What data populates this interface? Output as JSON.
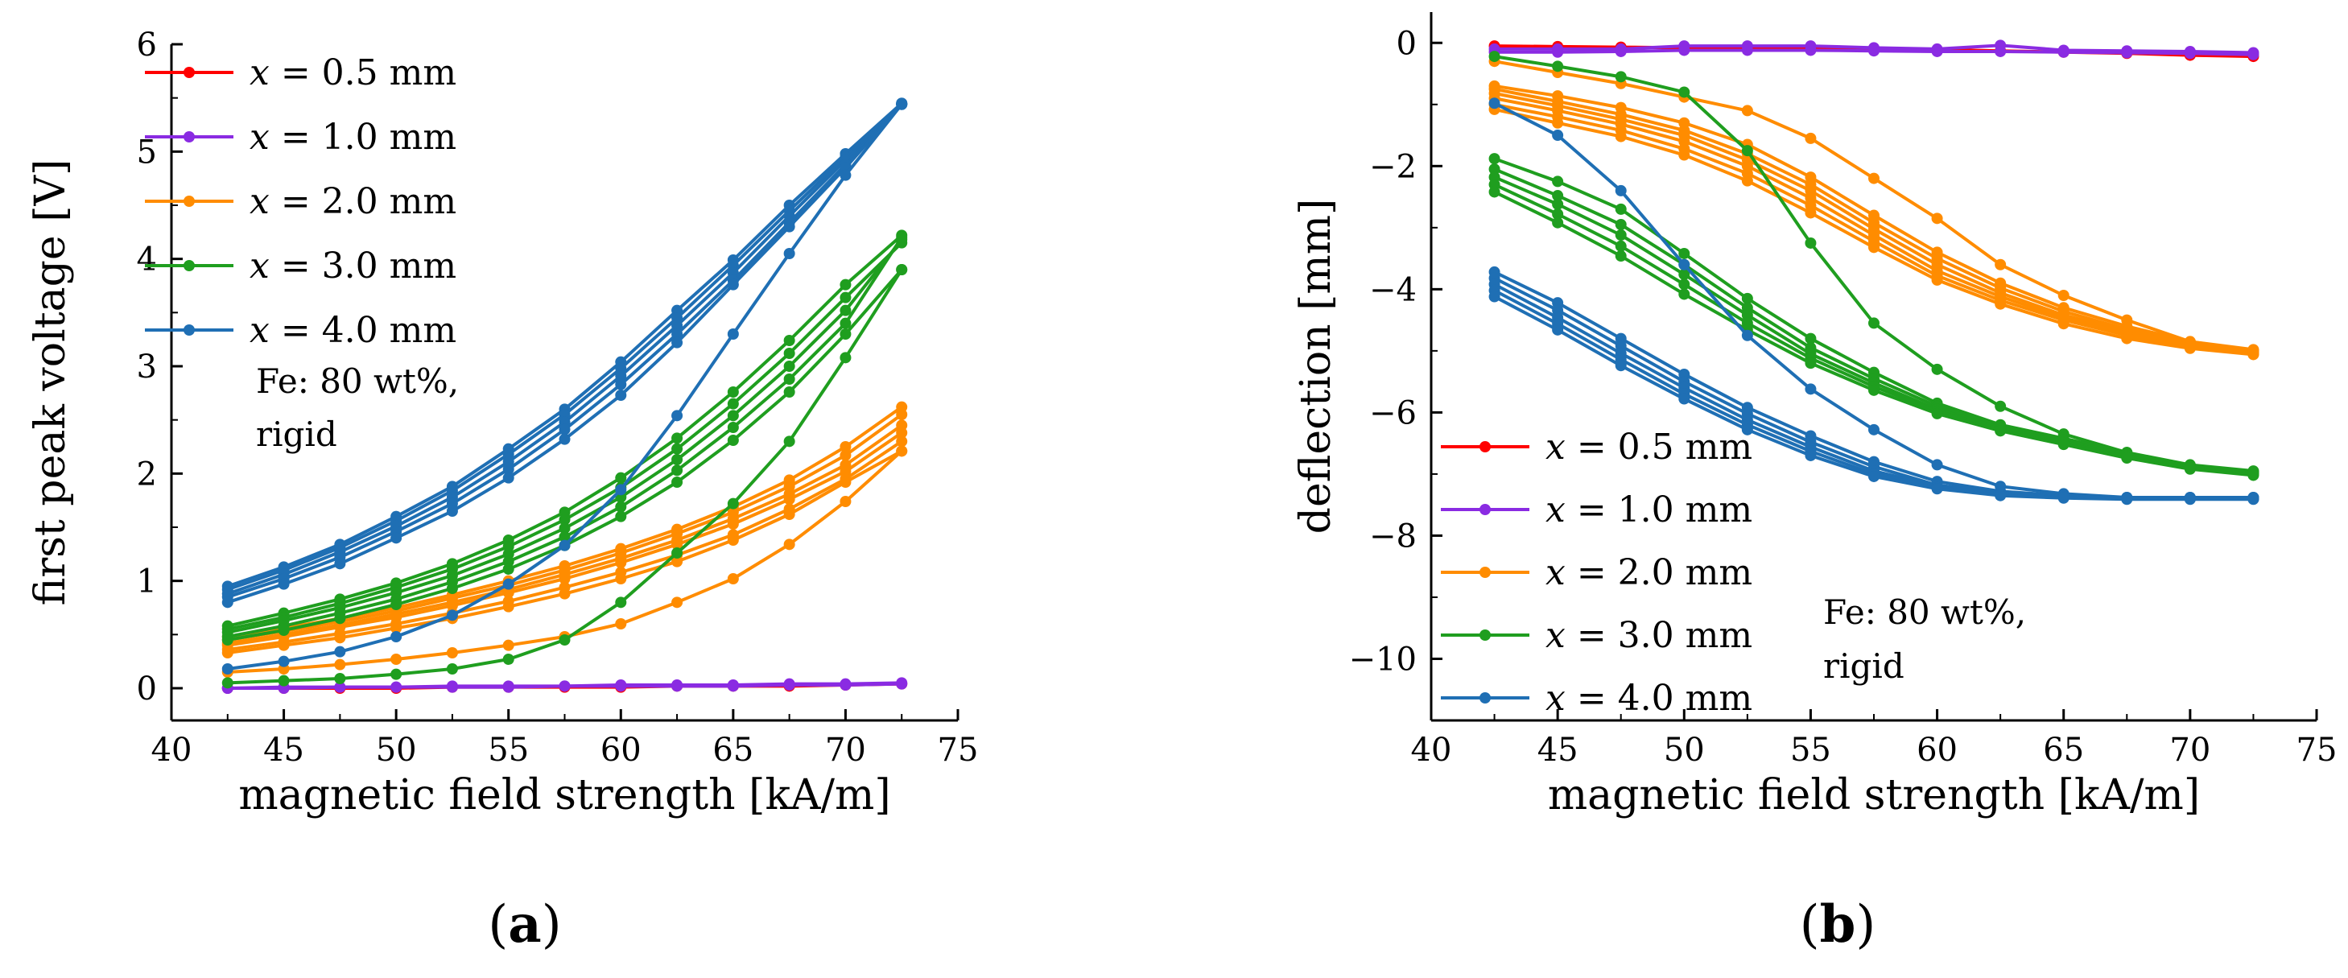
{
  "chart_data": [
    {
      "panel_label": "(a)",
      "type": "line",
      "xlabel": "magnetic field strength [kA/m]",
      "ylabel": "first peak voltage [V]",
      "xlim": [
        40,
        75
      ],
      "ylim": [
        -0.3,
        6
      ],
      "xticks": [
        40,
        45,
        50,
        55,
        60,
        65,
        70,
        75
      ],
      "yticks": [
        0,
        1,
        2,
        3,
        4,
        5,
        6
      ],
      "legend_position": "top-left",
      "annotation": [
        "Fe: 80 wt%,",
        "rigid"
      ],
      "x": [
        42.5,
        45,
        47.5,
        50,
        52.5,
        55,
        57.5,
        60,
        62.5,
        65,
        67.5,
        70,
        72.5
      ],
      "series": [
        {
          "name": "x = 0.5 mm",
          "color": "#ff0000",
          "runs": [
            [
              0.0,
              0.0,
              0.0,
              0.0,
              0.01,
              0.01,
              0.01,
              0.01,
              0.02,
              0.02,
              0.02,
              0.03,
              0.04
            ]
          ]
        },
        {
          "name": "x = 1.0 mm",
          "color": "#8a2be2",
          "runs": [
            [
              0.0,
              0.01,
              0.01,
              0.01,
              0.02,
              0.02,
              0.02,
              0.03,
              0.03,
              0.03,
              0.04,
              0.04,
              0.05
            ],
            [
              0.0,
              0.0,
              0.01,
              0.01,
              0.01,
              0.01,
              0.02,
              0.02,
              0.02,
              0.02,
              0.03,
              0.03,
              0.04
            ]
          ]
        },
        {
          "name": "x = 2.0 mm",
          "color": "#ff8c00",
          "runs": [
            [
              0.45,
              0.53,
              0.62,
              0.72,
              0.84,
              0.96,
              1.1,
              1.26,
              1.44,
              1.64,
              1.88,
              2.17,
              2.55
            ],
            [
              0.42,
              0.5,
              0.59,
              0.69,
              0.8,
              0.92,
              1.06,
              1.21,
              1.38,
              1.58,
              1.81,
              2.08,
              2.45
            ],
            [
              0.4,
              0.48,
              0.57,
              0.66,
              0.77,
              0.89,
              1.02,
              1.17,
              1.34,
              1.53,
              1.76,
              2.02,
              2.38
            ],
            [
              0.48,
              0.56,
              0.65,
              0.75,
              0.87,
              1.0,
              1.14,
              1.3,
              1.48,
              1.69,
              1.94,
              2.25,
              2.62
            ],
            [
              0.36,
              0.43,
              0.51,
              0.6,
              0.7,
              0.81,
              0.94,
              1.08,
              1.24,
              1.43,
              1.67,
              1.95,
              2.3
            ],
            [
              0.33,
              0.4,
              0.47,
              0.56,
              0.65,
              0.76,
              0.88,
              1.02,
              1.18,
              1.38,
              1.62,
              1.92,
              2.21
            ],
            [
              0.15,
              0.18,
              0.22,
              0.27,
              0.33,
              0.4,
              0.48,
              0.6,
              0.8,
              1.02,
              1.34,
              1.74,
              2.21
            ]
          ]
        },
        {
          "name": "x = 3.0 mm",
          "color": "#1f9e1f",
          "runs": [
            [
              0.58,
              0.7,
              0.83,
              0.98,
              1.16,
              1.38,
              1.64,
              1.96,
              2.33,
              2.76,
              3.24,
              3.76,
              4.22
            ],
            [
              0.55,
              0.66,
              0.79,
              0.94,
              1.11,
              1.32,
              1.57,
              1.87,
              2.23,
              2.65,
              3.12,
              3.64,
              4.15
            ],
            [
              0.52,
              0.63,
              0.75,
              0.89,
              1.05,
              1.25,
              1.49,
              1.78,
              2.13,
              2.54,
              3.0,
              3.52,
              4.18
            ],
            [
              0.48,
              0.58,
              0.7,
              0.83,
              0.99,
              1.18,
              1.41,
              1.69,
              2.03,
              2.43,
              2.88,
              3.4,
              4.2
            ],
            [
              0.45,
              0.54,
              0.65,
              0.78,
              0.93,
              1.11,
              1.33,
              1.6,
              1.92,
              2.31,
              2.76,
              3.3,
              3.9
            ],
            [
              0.05,
              0.07,
              0.09,
              0.13,
              0.18,
              0.27,
              0.45,
              0.8,
              1.26,
              1.72,
              2.3,
              3.08,
              3.9
            ]
          ]
        },
        {
          "name": "x = 4.0 mm",
          "color": "#1f6fb4",
          "runs": [
            [
              0.95,
              1.13,
              1.34,
              1.6,
              1.88,
              2.23,
              2.6,
              3.04,
              3.52,
              3.99,
              4.5,
              4.98,
              5.45
            ],
            [
              0.92,
              1.1,
              1.31,
              1.56,
              1.84,
              2.18,
              2.55,
              2.98,
              3.45,
              3.94,
              4.45,
              4.95,
              5.45
            ],
            [
              0.88,
              1.06,
              1.27,
              1.51,
              1.78,
              2.11,
              2.48,
              2.91,
              3.38,
              3.87,
              4.4,
              4.92,
              5.44
            ],
            [
              0.85,
              1.02,
              1.22,
              1.46,
              1.72,
              2.04,
              2.41,
              2.83,
              3.3,
              3.8,
              4.34,
              4.88,
              5.44
            ],
            [
              0.8,
              0.97,
              1.16,
              1.4,
              1.65,
              1.96,
              2.32,
              2.73,
              3.22,
              3.76,
              4.3,
              4.85,
              5.44
            ],
            [
              0.18,
              0.25,
              0.34,
              0.48,
              0.68,
              0.97,
              1.33,
              1.85,
              2.54,
              3.3,
              4.05,
              4.78,
              5.44
            ]
          ]
        }
      ]
    },
    {
      "panel_label": "(b)",
      "type": "line",
      "xlabel": "magnetic field strength [kA/m]",
      "ylabel": "deflection [mm]",
      "xlim": [
        40,
        75
      ],
      "ylim": [
        -11,
        0.5
      ],
      "xticks": [
        40,
        45,
        50,
        55,
        60,
        65,
        70,
        75
      ],
      "yticks": [
        0,
        -2,
        -4,
        -6,
        -8,
        -10
      ],
      "legend_position": "bottom-left",
      "annotation": [
        "Fe: 80 wt%,",
        "rigid"
      ],
      "x": [
        42.5,
        45,
        47.5,
        50,
        52.5,
        55,
        57.5,
        60,
        62.5,
        65,
        67.5,
        70,
        72.5
      ],
      "series": [
        {
          "name": "x = 0.5 mm",
          "color": "#ff0000",
          "runs": [
            [
              -0.05,
              -0.06,
              -0.07,
              -0.08,
              -0.08,
              -0.09,
              -0.1,
              -0.11,
              -0.13,
              -0.15,
              -0.17,
              -0.2,
              -0.22
            ]
          ]
        },
        {
          "name": "x = 1.0 mm",
          "color": "#8a2be2",
          "runs": [
            [
              -0.1,
              -0.1,
              -0.1,
              -0.05,
              -0.05,
              -0.05,
              -0.08,
              -0.1,
              -0.04,
              -0.12,
              -0.13,
              -0.14,
              -0.16
            ],
            [
              -0.15,
              -0.15,
              -0.14,
              -0.12,
              -0.12,
              -0.12,
              -0.13,
              -0.14,
              -0.14,
              -0.15,
              -0.16,
              -0.17,
              -0.19
            ]
          ]
        },
        {
          "name": "x = 2.0 mm",
          "color": "#ff8c00",
          "runs": [
            [
              -0.3,
              -0.48,
              -0.66,
              -0.88,
              -1.1,
              -1.55,
              -2.2,
              -2.85,
              -3.6,
              -4.1,
              -4.5,
              -4.85,
              -5.0
            ],
            [
              -0.7,
              -0.86,
              -1.05,
              -1.3,
              -1.65,
              -2.18,
              -2.8,
              -3.4,
              -3.9,
              -4.3,
              -4.6,
              -4.85,
              -4.98
            ],
            [
              -0.75,
              -0.95,
              -1.16,
              -1.42,
              -1.8,
              -2.3,
              -2.92,
              -3.5,
              -3.98,
              -4.36,
              -4.65,
              -4.88,
              -5.0
            ],
            [
              -0.82,
              -1.02,
              -1.24,
              -1.5,
              -1.9,
              -2.4,
              -3.02,
              -3.6,
              -4.06,
              -4.42,
              -4.68,
              -4.9,
              -5.02
            ],
            [
              -0.9,
              -1.1,
              -1.32,
              -1.6,
              -2.0,
              -2.52,
              -3.12,
              -3.7,
              -4.12,
              -4.46,
              -4.72,
              -4.92,
              -5.03
            ],
            [
              -1.0,
              -1.2,
              -1.42,
              -1.72,
              -2.12,
              -2.64,
              -3.22,
              -3.78,
              -4.18,
              -4.5,
              -4.75,
              -4.94,
              -5.05
            ],
            [
              -1.08,
              -1.3,
              -1.52,
              -1.82,
              -2.24,
              -2.76,
              -3.32,
              -3.85,
              -4.24,
              -4.56,
              -4.8,
              -4.96,
              -5.06
            ]
          ]
        },
        {
          "name": "x = 3.0 mm",
          "color": "#1f9e1f",
          "runs": [
            [
              -0.22,
              -0.38,
              -0.55,
              -0.8,
              -1.75,
              -3.25,
              -4.55,
              -5.3,
              -5.9,
              -6.35,
              -6.65,
              -6.9,
              -6.98
            ],
            [
              -1.88,
              -2.25,
              -2.7,
              -3.42,
              -4.15,
              -4.8,
              -5.35,
              -5.85,
              -6.2,
              -6.42,
              -6.65,
              -6.85,
              -6.95
            ],
            [
              -2.05,
              -2.48,
              -2.95,
              -3.6,
              -4.3,
              -4.95,
              -5.45,
              -5.9,
              -6.22,
              -6.45,
              -6.68,
              -6.87,
              -6.96
            ],
            [
              -2.18,
              -2.62,
              -3.12,
              -3.76,
              -4.42,
              -5.05,
              -5.52,
              -5.95,
              -6.25,
              -6.48,
              -6.7,
              -6.89,
              -6.98
            ],
            [
              -2.3,
              -2.78,
              -3.3,
              -3.92,
              -4.55,
              -5.12,
              -5.58,
              -5.98,
              -6.28,
              -6.5,
              -6.72,
              -6.9,
              -7.0
            ],
            [
              -2.42,
              -2.92,
              -3.46,
              -4.08,
              -4.66,
              -5.2,
              -5.64,
              -6.02,
              -6.3,
              -6.52,
              -6.74,
              -6.92,
              -7.02
            ]
          ]
        },
        {
          "name": "x = 4.0 mm",
          "color": "#1f6fb4",
          "runs": [
            [
              -0.98,
              -1.5,
              -2.4,
              -3.6,
              -4.75,
              -5.62,
              -6.28,
              -6.85,
              -7.2,
              -7.32,
              -7.38,
              -7.38,
              -7.38
            ],
            [
              -3.72,
              -4.22,
              -4.8,
              -5.38,
              -5.92,
              -6.38,
              -6.8,
              -7.12,
              -7.28,
              -7.35,
              -7.38,
              -7.38,
              -7.38
            ],
            [
              -3.82,
              -4.34,
              -4.92,
              -5.5,
              -6.02,
              -6.48,
              -6.88,
              -7.18,
              -7.3,
              -7.36,
              -7.39,
              -7.39,
              -7.39
            ],
            [
              -3.92,
              -4.46,
              -5.04,
              -5.6,
              -6.12,
              -6.56,
              -6.95,
              -7.2,
              -7.32,
              -7.37,
              -7.4,
              -7.4,
              -7.4
            ],
            [
              -4.02,
              -4.56,
              -5.14,
              -5.7,
              -6.2,
              -6.63,
              -7.0,
              -7.22,
              -7.34,
              -7.38,
              -7.4,
              -7.4,
              -7.4
            ],
            [
              -4.12,
              -4.66,
              -5.24,
              -5.78,
              -6.28,
              -6.7,
              -7.04,
              -7.24,
              -7.35,
              -7.39,
              -7.41,
              -7.41,
              -7.41
            ]
          ]
        }
      ]
    }
  ]
}
